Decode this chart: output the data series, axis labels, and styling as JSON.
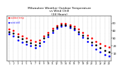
{
  "title": "Milwaukee Weather Outdoor Temperature\nvs Wind Chill\n(24 Hours)",
  "title_fontsize": 3.2,
  "background_color": "#ffffff",
  "hours": [
    1,
    2,
    3,
    4,
    5,
    6,
    7,
    8,
    9,
    10,
    11,
    12,
    13,
    14,
    15,
    16,
    17,
    18,
    19,
    20,
    21,
    22,
    23,
    24
  ],
  "temp": [
    42,
    40,
    36,
    33,
    30,
    28,
    26,
    28,
    33,
    38,
    43,
    47,
    50,
    50,
    48,
    46,
    42,
    38,
    34,
    30,
    26,
    23,
    20,
    18
  ],
  "wind_chill": [
    36,
    33,
    28,
    25,
    22,
    20,
    17,
    20,
    26,
    32,
    38,
    43,
    46,
    47,
    44,
    41,
    36,
    31,
    26,
    21,
    16,
    12,
    8,
    6
  ],
  "feels_like": [
    39,
    37,
    32,
    29,
    26,
    24,
    21,
    24,
    30,
    35,
    40,
    45,
    48,
    48,
    46,
    43,
    39,
    34,
    30,
    25,
    21,
    17,
    14,
    12
  ],
  "temp_color": "#ff0000",
  "wind_chill_color": "#0000ff",
  "feels_like_color": "#000000",
  "ylim": [
    0,
    60
  ],
  "xlim": [
    0.5,
    24.5
  ],
  "yticks": [
    10,
    20,
    30,
    40,
    50
  ],
  "ytick_labels": [
    "10",
    "20",
    "30",
    "40",
    "50"
  ],
  "ytick_fontsize": 2.8,
  "xtick_labels": [
    "1",
    "2",
    "3",
    "4",
    "5",
    "6",
    "7",
    "8",
    "9",
    "10",
    "11",
    "12",
    "13",
    "14",
    "15",
    "16",
    "17",
    "18",
    "19",
    "20",
    "21",
    "22",
    "23",
    "24"
  ],
  "xtick_fontsize": 2.2,
  "grid_color": "#999999",
  "marker_size": 1.0
}
